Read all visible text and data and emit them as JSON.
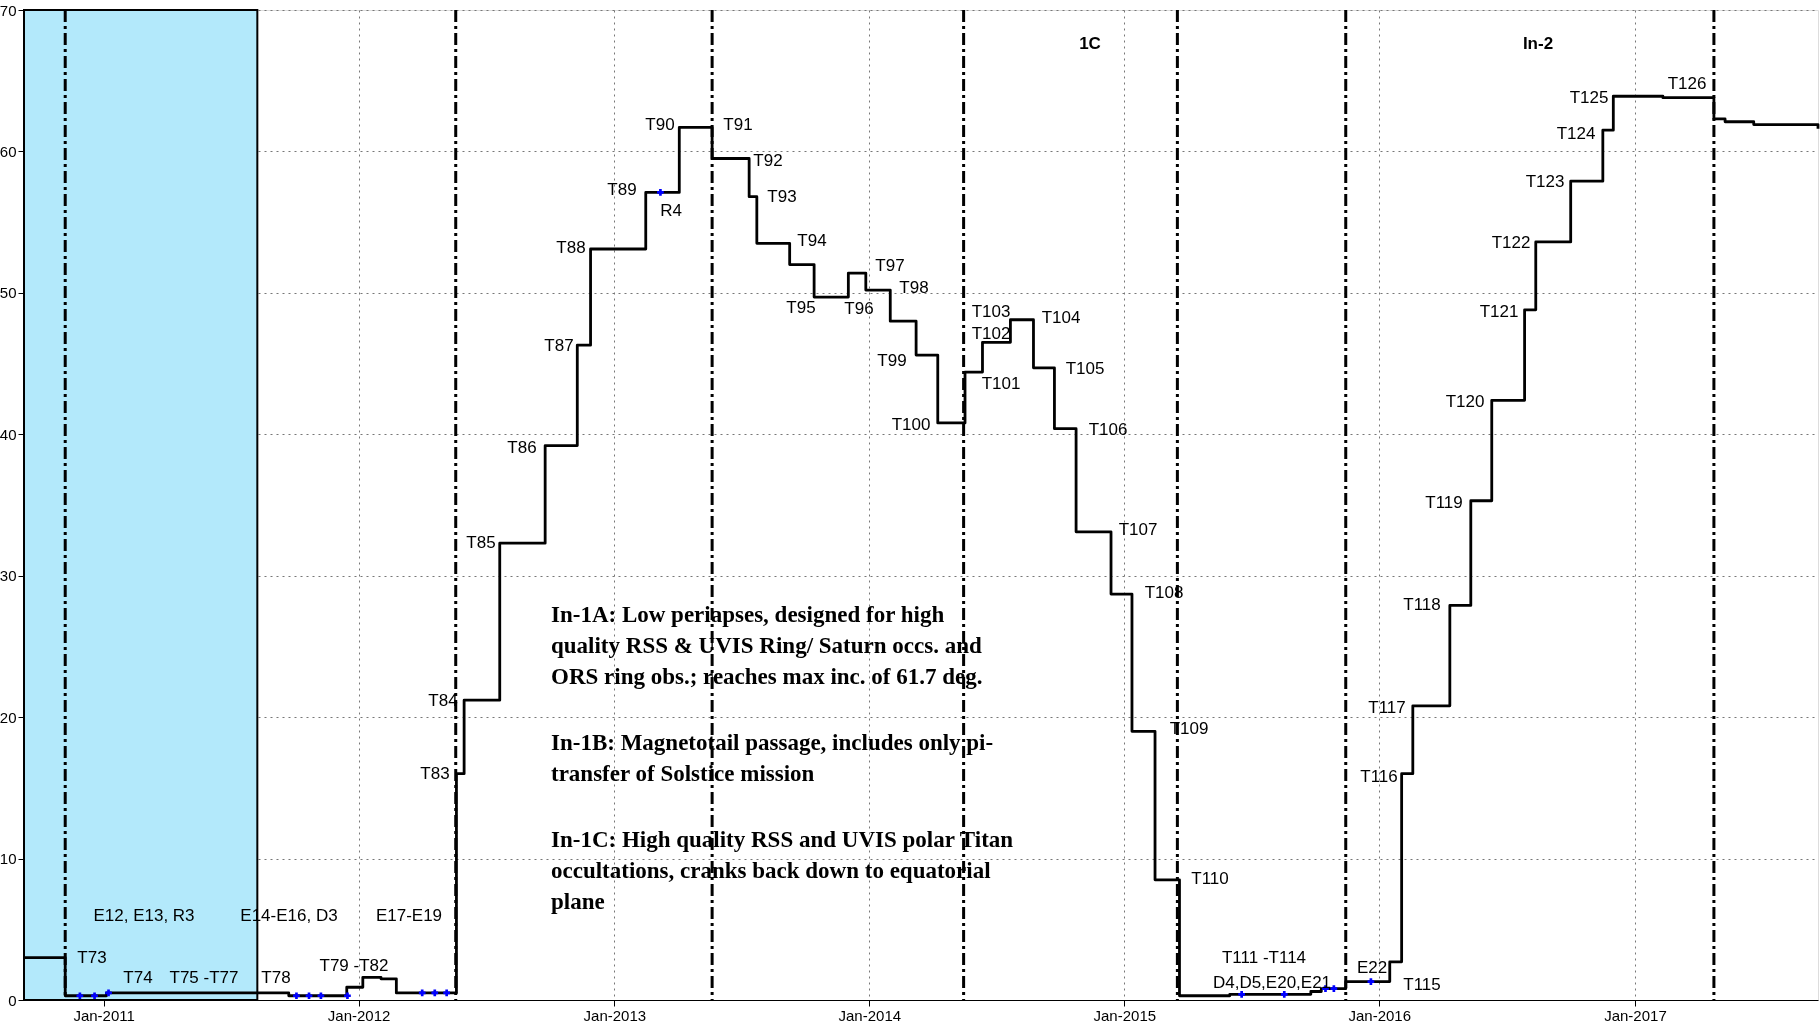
{
  "chart_data": {
    "type": "step",
    "xlim": [
      "2010-09-09",
      "2017-09-20"
    ],
    "ylim": [
      0,
      70
    ],
    "yticks": [
      0,
      10,
      20,
      30,
      40,
      50,
      60,
      70
    ],
    "xticks": [
      {
        "value": "2011-01-01",
        "label": "Jan-2011"
      },
      {
        "value": "2012-01-01",
        "label": "Jan-2012"
      },
      {
        "value": "2013-01-01",
        "label": "Jan-2013"
      },
      {
        "value": "2014-01-01",
        "label": "Jan-2014"
      },
      {
        "value": "2015-01-01",
        "label": "Jan-2015"
      },
      {
        "value": "2016-01-01",
        "label": "Jan-2016"
      },
      {
        "value": "2017-01-01",
        "label": "Jan-2017"
      }
    ],
    "grid": true,
    "series": [
      {
        "color": "#000000",
        "x": [
          "2010-09-09",
          "2010-11-07",
          "2011-01-05",
          "2011-09-23",
          "2011-12-15",
          "2012-01-07",
          "2012-02-02",
          "2012-02-24",
          "2012-05-20",
          "2012-05-31",
          "2012-07-21",
          "2012-09-24",
          "2012-11-09",
          "2012-11-28",
          "2013-02-15",
          "2013-04-04",
          "2013-05-21",
          "2013-07-13",
          "2013-07-24",
          "2013-09-09",
          "2013-10-14",
          "2013-12-02",
          "2013-12-27",
          "2014-01-31",
          "2014-03-09",
          "2014-04-09",
          "2014-05-18",
          "2014-06-12",
          "2014-07-22",
          "2014-08-24",
          "2014-09-23",
          "2014-10-24",
          "2014-12-13",
          "2015-01-12",
          "2015-02-14",
          "2015-03-21",
          "2015-06-01",
          "2015-09-25",
          "2015-10-10",
          "2015-11-14",
          "2016-01-16",
          "2016-02-02",
          "2016-02-18",
          "2016-04-11",
          "2016-05-11",
          "2016-06-10",
          "2016-07-27",
          "2016-08-12",
          "2016-10-01",
          "2016-11-16",
          "2016-12-01",
          "2017-02-10",
          "2017-04-24",
          "2017-05-10",
          "2017-06-20",
          "2017-09-20"
        ],
        "values": [
          3.0,
          0.3,
          0.5,
          0.3,
          0.9,
          1.6,
          1.5,
          0.5,
          16.0,
          21.2,
          32.3,
          39.2,
          46.3,
          53.1,
          57.1,
          61.7,
          59.5,
          56.8,
          53.5,
          52.0,
          49.7,
          51.4,
          50.2,
          48.0,
          45.6,
          40.8,
          44.4,
          46.5,
          48.1,
          44.7,
          40.4,
          33.1,
          28.7,
          19.0,
          8.5,
          0.3,
          0.4,
          0.6,
          0.8,
          1.3,
          2.7,
          16.0,
          20.8,
          27.9,
          35.3,
          42.4,
          48.8,
          53.6,
          57.9,
          61.5,
          63.9,
          63.8,
          62.3,
          62.1,
          61.9,
          61.6
        ]
      },
      {
        "type": "scatter",
        "color": "#0000ff",
        "marker": "cross",
        "x": [
          "2010-11-28",
          "2010-12-19",
          "2011-01-08",
          "2011-10-04",
          "2011-10-22",
          "2011-11-08",
          "2011-12-16",
          "2012-04-01",
          "2012-04-19",
          "2012-05-06",
          "2013-03-08",
          "2015-06-18",
          "2015-08-18",
          "2015-10-16",
          "2015-10-28",
          "2015-12-20"
        ],
        "values": [
          0.3,
          0.3,
          0.5,
          0.3,
          0.3,
          0.3,
          0.3,
          0.5,
          0.5,
          0.5,
          57.1,
          0.4,
          0.4,
          0.8,
          0.8,
          1.3
        ]
      }
    ],
    "bands": [
      {
        "axis": "x",
        "from": "2010-09-09",
        "to": "2011-08-09",
        "color": "#b3e9fb"
      }
    ],
    "ref_lines": [
      {
        "axis": "x",
        "value": "2010-11-07",
        "color": "#000000",
        "line_style": "dashed"
      },
      {
        "axis": "x",
        "value": "2012-05-19",
        "color": "#000000",
        "line_style": "dashed"
      },
      {
        "axis": "x",
        "value": "2013-05-21",
        "color": "#000000",
        "line_style": "dashed"
      },
      {
        "axis": "x",
        "value": "2014-05-16",
        "color": "#000000",
        "line_style": "dashed"
      },
      {
        "axis": "x",
        "value": "2015-03-18",
        "color": "#000000",
        "line_style": "dashed"
      },
      {
        "axis": "x",
        "value": "2015-11-14",
        "color": "#000000",
        "line_style": "dashed"
      },
      {
        "axis": "x",
        "value": "2017-04-24",
        "color": "#000000",
        "line_style": "dashed"
      }
    ],
    "annotations": [
      "T73",
      "E12, E13, R3",
      "E14-E16, D3",
      "E17-E19",
      "T74",
      "T75 -T77",
      "T78",
      "T79 -T82",
      "T83",
      "T84",
      "T85",
      "T86",
      "T87",
      "T88",
      "T89",
      "R4",
      "T90",
      "T91",
      "T92",
      "T93",
      "T94",
      "T95",
      "T96",
      "T97",
      "T98",
      "T99",
      "T100",
      "T101",
      "T102",
      "T103",
      "T104",
      "T105",
      "T106",
      "T107",
      "T108",
      "T109",
      "T110",
      "T111 -T114",
      "D4,D5,E20,E21",
      "E22",
      "T115",
      "T116",
      "T117",
      "T118",
      "T119",
      "T120",
      "T121",
      "T122",
      "T123",
      "T124",
      "T125",
      "T126",
      "1C",
      "In-2",
      "In-1A:  Low periapses, designed for high\nquality RSS & UVIS Ring/ Saturn occs. and\nORS ring obs.; reaches max inc. of 61.7 deg.",
      "In-1B:  Magnetotail passage, includes only pi-\ntransfer of Solstice  mission",
      "In-1C: High quality RSS and UVIS polar Titan\noccultations, cranks back  down to equatorial\nplane"
    ]
  }
}
